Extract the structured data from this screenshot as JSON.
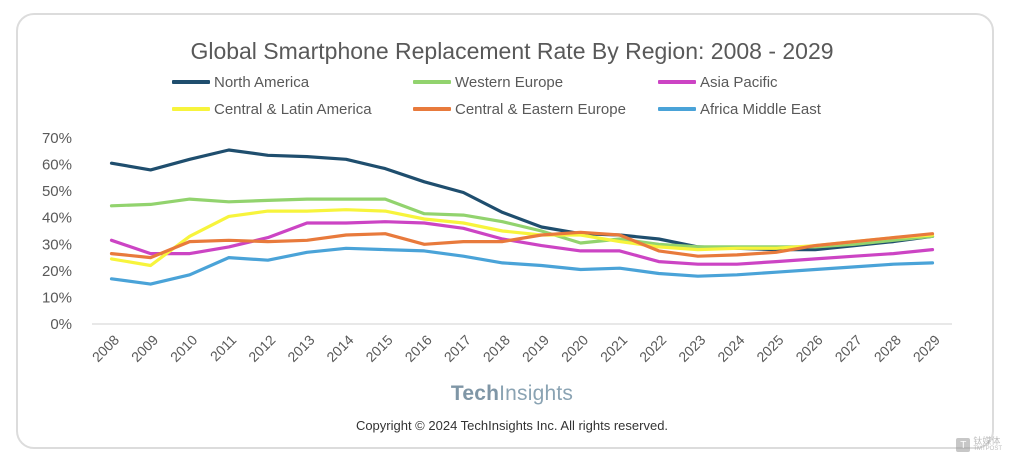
{
  "chart_data": {
    "type": "line",
    "title": "Global Smartphone Replacement Rate By Region: 2008 - 2029",
    "xlabel": "",
    "ylabel": "",
    "x": [
      "2008",
      "2009",
      "2010",
      "2011",
      "2012",
      "2013",
      "2014",
      "2015",
      "2016",
      "2017",
      "2018",
      "2019",
      "2020",
      "2021",
      "2022",
      "2023",
      "2024",
      "2025",
      "2026",
      "2027",
      "2028",
      "2029"
    ],
    "ylim": [
      0,
      70
    ],
    "yticks": [
      "0%",
      "10%",
      "20%",
      "30%",
      "40%",
      "50%",
      "60%",
      "70%"
    ],
    "grid": false,
    "legend_position": "top",
    "series": [
      {
        "name": "North America",
        "color": "#1f4e6e",
        "values": [
          60.5,
          58,
          62,
          65.5,
          63.5,
          63,
          62,
          58.5,
          53.5,
          49.5,
          42,
          36.5,
          34,
          33.5,
          32,
          29,
          28.5,
          28,
          28,
          29.5,
          31,
          33
        ]
      },
      {
        "name": "Western Europe",
        "color": "#92d36e",
        "values": [
          44.5,
          45,
          47,
          46,
          46.5,
          47,
          47,
          47,
          41.5,
          41,
          38.5,
          35,
          30.5,
          32,
          30,
          29,
          29,
          29,
          29,
          30,
          31.5,
          33
        ]
      },
      {
        "name": "Asia Pacific",
        "color": "#cc44c4",
        "values": [
          31.5,
          26.5,
          26.5,
          29,
          32.5,
          38,
          38,
          38.5,
          38,
          36,
          32,
          29.5,
          27.5,
          27.5,
          23.5,
          22.5,
          22.5,
          23.5,
          24.5,
          25.5,
          26.5,
          28
        ]
      },
      {
        "name": "Central & Latin America",
        "color": "#f7f43c",
        "values": [
          24.5,
          22,
          33,
          40.5,
          42.5,
          42.5,
          43,
          42.5,
          39.5,
          38,
          35,
          33.5,
          33.5,
          31,
          29,
          28,
          28.5,
          28.5,
          29.5,
          31,
          32.5,
          33.5
        ]
      },
      {
        "name": "Central & Eastern Europe",
        "color": "#e87a3c",
        "values": [
          26.5,
          25,
          31,
          31.5,
          31,
          31.5,
          33.5,
          34,
          30,
          31,
          31,
          33.5,
          34.5,
          33.5,
          27.5,
          25.5,
          26,
          27,
          29.5,
          31,
          32.5,
          34
        ]
      },
      {
        "name": "Africa Middle East",
        "color": "#4aa3d8",
        "values": [
          17,
          15,
          18.5,
          25,
          24,
          27,
          28.5,
          28,
          27.5,
          25.5,
          23,
          22,
          20.5,
          21,
          19,
          18,
          18.5,
          19.5,
          20.5,
          21.5,
          22.5,
          23
        ]
      }
    ]
  },
  "brand": {
    "tech": "Tech",
    "insights": "Insights"
  },
  "copyright": "Copyright © 2024 TechInsights Inc.  All rights reserved.",
  "watermark": {
    "glyph": "T",
    "line1": "钛媒体",
    "line2": "TMTPOST"
  }
}
